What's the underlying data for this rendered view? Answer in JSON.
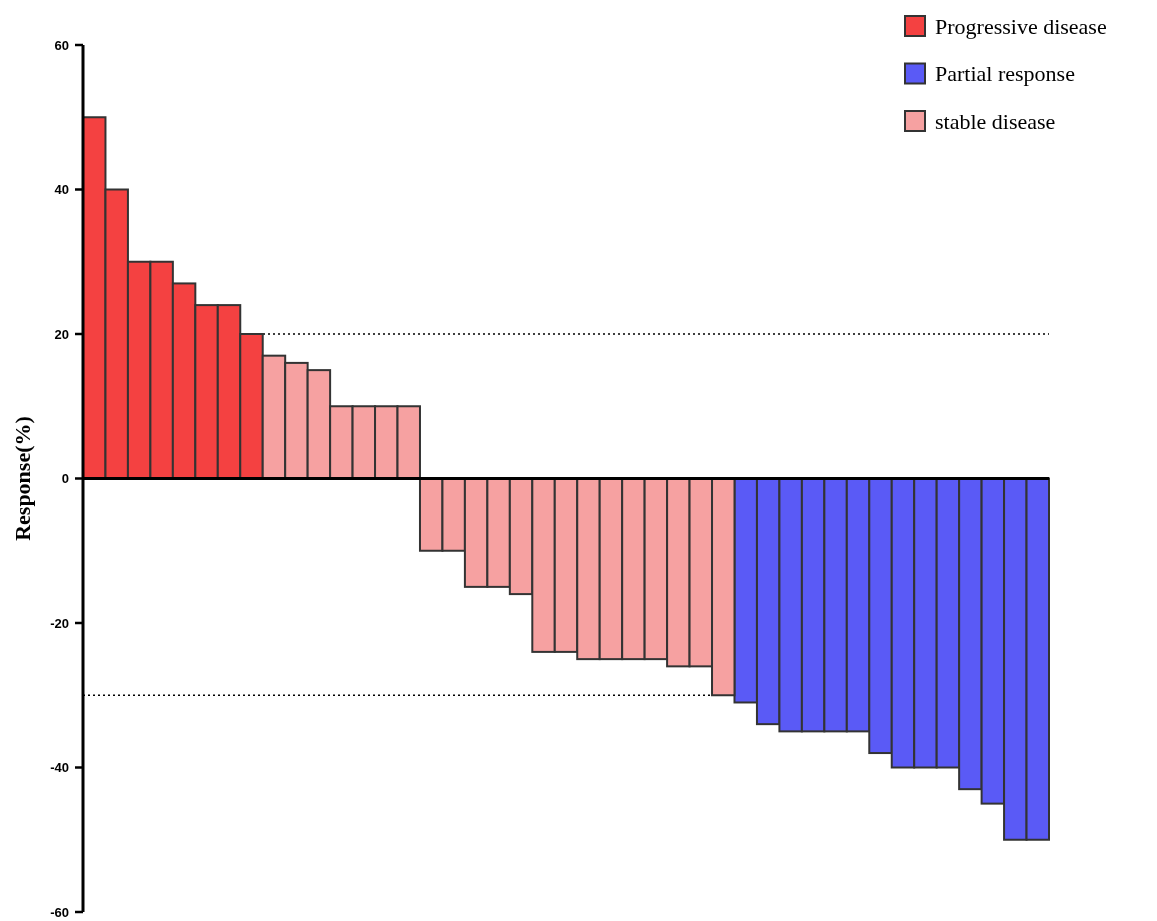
{
  "chart_data": {
    "type": "bar",
    "ylabel": "Response(%)",
    "categories": [
      null,
      null,
      null,
      null,
      null,
      null,
      null,
      null,
      null,
      null,
      null,
      null,
      null,
      null,
      null,
      null,
      null,
      null,
      null,
      null,
      null,
      null,
      null,
      null,
      null,
      null,
      null,
      null,
      null,
      null,
      null,
      null,
      null,
      null,
      null,
      null,
      null,
      null,
      null,
      null,
      null,
      null,
      null
    ],
    "series": [
      {
        "name": "Progressive disease",
        "color": "#f44141",
        "values": [
          50,
          40,
          30,
          30,
          27,
          24,
          24,
          20,
          null,
          null,
          null,
          null,
          null,
          null,
          null,
          null,
          null,
          null,
          null,
          null,
          null,
          null,
          null,
          null,
          null,
          null,
          null,
          null,
          null,
          null,
          null,
          null,
          null,
          null,
          null,
          null,
          null,
          null,
          null,
          null,
          null,
          null,
          null
        ]
      },
      {
        "name": "Partial response",
        "color": "#5a5af6",
        "values": [
          null,
          null,
          null,
          null,
          null,
          null,
          null,
          null,
          null,
          null,
          null,
          null,
          null,
          null,
          null,
          null,
          null,
          null,
          null,
          null,
          null,
          null,
          null,
          null,
          null,
          null,
          null,
          null,
          null,
          -31,
          -34,
          -35,
          -35,
          -35,
          -35,
          -38,
          -40,
          -40,
          -40,
          -43,
          -45,
          -50,
          -50
        ]
      },
      {
        "name": "stable disease",
        "color": "#f6a1a1",
        "values": [
          null,
          null,
          null,
          null,
          null,
          null,
          null,
          null,
          17,
          16,
          15,
          10,
          10,
          10,
          10,
          -10,
          -10,
          -15,
          -15,
          -16,
          -24,
          -24,
          -25,
          -25,
          -25,
          -25,
          -26,
          -26,
          -30,
          null,
          null,
          null,
          null,
          null,
          null,
          null,
          null,
          null,
          null,
          null,
          null,
          null,
          null
        ]
      }
    ],
    "stacked": true,
    "ylim": [
      -60,
      60
    ],
    "yticks": [
      -60,
      -40,
      -20,
      0,
      20,
      40,
      60
    ],
    "tick_labels": "y",
    "legend": "top right",
    "grid": false,
    "ref_lines": [
      {
        "axis": "y",
        "value": 20,
        "line_style": "dotted"
      },
      {
        "axis": "y",
        "value": -30,
        "line_style": "dotted"
      }
    ]
  }
}
